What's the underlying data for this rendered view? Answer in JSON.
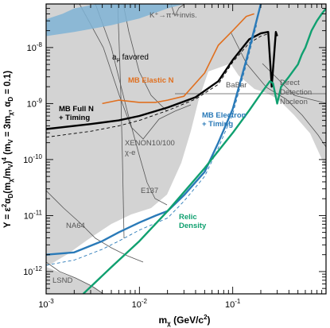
{
  "chart_data": {
    "type": "line",
    "xscale": "log",
    "yscale": "log",
    "xlim": [
      0.001,
      1.0
    ],
    "ylim": [
      4e-13,
      6e-08
    ],
    "xlabel": "mχ (GeV/c²)",
    "ylabel": "Y = ε²αD(mχ/mV)⁴ (mV = 3mχ, αD = 0.1)",
    "x_ticks": [
      "10",
      "10",
      "10"
    ],
    "x_tick_exponents": [
      "-3",
      "-2",
      "-1"
    ],
    "y_ticks": [
      "10",
      "10",
      "10",
      "10",
      "10"
    ],
    "y_tick_exponents": [
      "-12",
      "-11",
      "-10",
      "-9",
      "-8"
    ],
    "grid": false,
    "regions": [
      {
        "name": "K⁺→π⁺+invis.",
        "color": "#d0d0d0"
      },
      {
        "name": "BaBar",
        "color": "#d0d0d0"
      },
      {
        "name": "Direct Detection Nucleon",
        "color": "#d0d0d0"
      },
      {
        "name": "XENON10/100 χ-e",
        "color": "#d0d0d0"
      },
      {
        "name": "E137",
        "color": "#d0d0d0"
      },
      {
        "name": "NA64",
        "color": "#d0d0d0"
      },
      {
        "name": "LSND",
        "color": "#d0d0d0"
      }
    ],
    "band": {
      "name": "aμ favored",
      "color": "#7fb3d5",
      "lower": [
        [
          0.001,
          1.6e-08
        ],
        [
          0.002,
          1.9e-08
        ],
        [
          0.005,
          2.5e-08
        ],
        [
          0.01,
          3.3e-08
        ],
        [
          0.02,
          5e-08
        ],
        [
          0.03,
          6e-08
        ]
      ],
      "upper": [
        [
          0.001,
          3.2e-08
        ],
        [
          0.0015,
          4e-08
        ],
        [
          0.002,
          5e-08
        ],
        [
          0.0035,
          6e-08
        ]
      ]
    },
    "series": [
      {
        "name": "MB Full N + Timing",
        "color": "#000000",
        "style": "solid",
        "points": [
          [
            0.001,
            3.5e-10
          ],
          [
            0.003,
            4.3e-10
          ],
          [
            0.006,
            5e-10
          ],
          [
            0.01,
            6e-10
          ],
          [
            0.02,
            8.5e-10
          ],
          [
            0.04,
            1.3e-09
          ],
          [
            0.07,
            2.5e-09
          ],
          [
            0.1,
            6e-09
          ],
          [
            0.15,
            1.4e-08
          ],
          [
            0.2,
            1.8e-08
          ],
          [
            0.24,
            1.9e-08
          ],
          [
            0.255,
            4e-09
          ],
          [
            0.262,
            2e-09
          ],
          [
            0.27,
            4e-09
          ],
          [
            0.29,
            1.9e-08
          ],
          [
            0.3,
            1.6e-08
          ]
        ]
      },
      {
        "name": "MB Full N + Timing (dashed)",
        "color": "#000000",
        "style": "dashed",
        "points": [
          [
            0.001,
            2.5e-10
          ],
          [
            0.003,
            3.2e-10
          ],
          [
            0.006,
            4e-10
          ],
          [
            0.01,
            5e-10
          ],
          [
            0.02,
            7.5e-10
          ],
          [
            0.04,
            1.2e-09
          ],
          [
            0.07,
            2.2e-09
          ],
          [
            0.1,
            5.5e-09
          ],
          [
            0.15,
            1.2e-08
          ],
          [
            0.2,
            1.6e-08
          ],
          [
            0.24,
            1.75e-08
          ]
        ]
      },
      {
        "name": "MB Elastic N",
        "color": "#e07020",
        "style": "solid",
        "points": [
          [
            0.004,
            1e-09
          ],
          [
            0.006,
            1.15e-09
          ],
          [
            0.01,
            1.05e-09
          ],
          [
            0.015,
            1.05e-09
          ],
          [
            0.02,
            1.15e-09
          ],
          [
            0.03,
            1.35e-09
          ],
          [
            0.05,
            3.5e-09
          ],
          [
            0.07,
            1.1e-08
          ],
          [
            0.1,
            2e-08
          ],
          [
            0.14,
            3.6e-08
          ],
          [
            0.17,
            4e-08
          ]
        ]
      },
      {
        "name": "MB Electron + Timing",
        "color": "#2a7ab8",
        "style": "solid",
        "points": [
          [
            0.001,
            2e-12
          ],
          [
            0.002,
            2.2e-12
          ],
          [
            0.004,
            3.5e-12
          ],
          [
            0.006,
            5e-12
          ],
          [
            0.01,
            7.5e-12
          ],
          [
            0.015,
            1e-11
          ],
          [
            0.02,
            1.2e-11
          ],
          [
            0.03,
            2.3e-11
          ],
          [
            0.05,
            6e-11
          ],
          [
            0.07,
            2e-10
          ],
          [
            0.1,
            8e-10
          ],
          [
            0.14,
            6e-09
          ],
          [
            0.18,
            3e-08
          ],
          [
            0.2,
            6e-08
          ]
        ]
      },
      {
        "name": "MB Electron + Timing (dashed)",
        "color": "#2a7ab8",
        "style": "dashed",
        "points": [
          [
            0.001,
            1.3e-12
          ],
          [
            0.002,
            1.6e-12
          ],
          [
            0.004,
            2.5e-12
          ],
          [
            0.006,
            3.5e-12
          ],
          [
            0.01,
            5.5e-12
          ],
          [
            0.02,
            9e-12
          ],
          [
            0.03,
            1.8e-11
          ],
          [
            0.05,
            5e-11
          ],
          [
            0.07,
            1.6e-10
          ],
          [
            0.1,
            6.5e-10
          ],
          [
            0.14,
            5e-09
          ],
          [
            0.18,
            2.5e-08
          ]
        ]
      },
      {
        "name": "Relic Density",
        "color": "#10a070",
        "style": "solid",
        "points": [
          [
            0.0025,
            4e-13
          ],
          [
            0.005,
            1.2e-12
          ],
          [
            0.01,
            3.5e-12
          ],
          [
            0.02,
            1.2e-11
          ],
          [
            0.05,
            7e-11
          ],
          [
            0.1,
            3e-10
          ],
          [
            0.15,
            7.5e-10
          ],
          [
            0.2,
            1.5e-09
          ],
          [
            0.25,
            2.5e-09
          ],
          [
            0.27,
            2.3e-09
          ],
          [
            0.3,
            1e-09
          ],
          [
            0.33,
            2e-09
          ],
          [
            0.4,
            3e-09
          ],
          [
            0.5,
            5e-09
          ],
          [
            0.55,
            7.5e-09
          ],
          [
            0.6,
            1e-08
          ],
          [
            0.7,
            2e-08
          ],
          [
            0.8,
            3e-08
          ],
          [
            0.9,
            4e-08
          ],
          [
            1.0,
            5e-08
          ]
        ]
      }
    ],
    "labels": {
      "kaon": "K⁺→π⁺+invis.",
      "amu_symbol": "a",
      "amu_subscript": "μ",
      "amu_word": "favored",
      "mb_elastic": "MB Elastic N",
      "babar": "BaBar",
      "direct1": "Direct",
      "direct2": "Detection",
      "direct3": "Nucleon",
      "mb_full1": "MB Full N",
      "mb_full2": "+ Timing",
      "mb_electron1": "MB Electron",
      "mb_electron2": "+ Timing",
      "xenon1": "XENON10/100",
      "xenon2": "χ-e",
      "e137": "E137",
      "relic1": "Relic",
      "relic2": "Density",
      "na64": "NA64",
      "lsnd": "LSND"
    }
  }
}
